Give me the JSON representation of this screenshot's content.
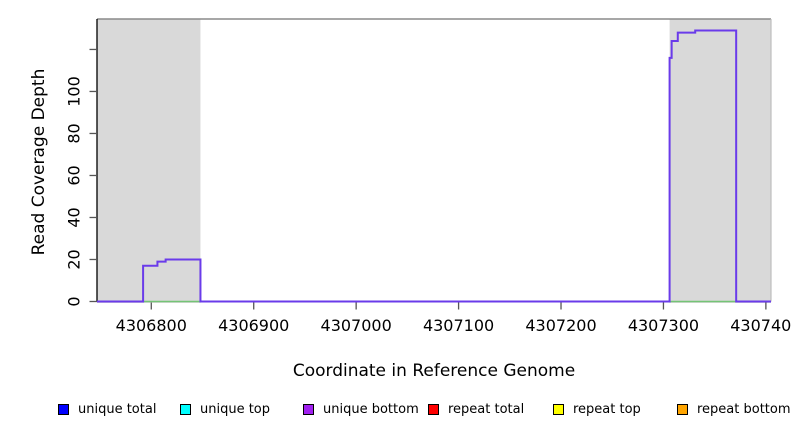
{
  "figure": {
    "y_axis_label": "Read Coverage Depth",
    "x_axis_label": "Coordinate in Reference Genome"
  },
  "chart_data": {
    "type": "line",
    "title": "",
    "xlabel": "Coordinate in Reference Genome",
    "ylabel": "Read Coverage Depth",
    "xlim": [
      4306747,
      4307405
    ],
    "ylim": [
      0,
      134.5
    ],
    "grid": false,
    "x_ticks": [
      4306800,
      4306900,
      4307000,
      4307100,
      4307200,
      4307300,
      4307400
    ],
    "x_tick_labels": [
      "4306800",
      "4306900",
      "4307000",
      "4307100",
      "4307200",
      "4307300",
      "4307400"
    ],
    "y_ticks_labeled": [
      0,
      20,
      40,
      60,
      80,
      100
    ],
    "y_tick_labels": [
      "0",
      "20",
      "40",
      "60",
      "80",
      "100"
    ],
    "y_ticks_unlabeled": [
      120
    ],
    "shaded_regions": [
      {
        "name": "left-shaded-region",
        "x0": 4306747,
        "x1": 4306848,
        "color": "#d9d9d9"
      },
      {
        "name": "right-shaded-region",
        "x0": 4307306,
        "x1": 4307405,
        "color": "#d9d9d9"
      }
    ],
    "series": [
      {
        "name": "zero-baseline-green-left",
        "color": "#74c476",
        "width": 1.6,
        "points": [
          [
            4306792,
            0
          ],
          [
            4306848,
            0
          ]
        ]
      },
      {
        "name": "zero-baseline-green-right",
        "color": "#74c476",
        "width": 1.6,
        "points": [
          [
            4307306,
            0
          ],
          [
            4307371,
            0
          ]
        ]
      },
      {
        "name": "unique-bottom-coverage",
        "color": "#6a3bea",
        "width": 2,
        "points": [
          [
            4306747,
            0
          ],
          [
            4306792,
            0
          ],
          [
            4306792,
            17
          ],
          [
            4306806,
            17
          ],
          [
            4306806,
            19
          ],
          [
            4306814,
            19
          ],
          [
            4306814,
            20
          ],
          [
            4306848,
            20
          ],
          [
            4306848,
            0
          ],
          [
            4307306,
            0
          ],
          [
            4307306,
            116
          ],
          [
            4307308,
            116
          ],
          [
            4307308,
            124
          ],
          [
            4307314,
            124
          ],
          [
            4307314,
            128
          ],
          [
            4307331,
            128
          ],
          [
            4307331,
            129
          ],
          [
            4307371,
            129
          ],
          [
            4307371,
            0
          ],
          [
            4307405,
            0
          ]
        ]
      }
    ],
    "frame_colors": {
      "top": "#8a8a8a",
      "right": "#bdbdbd",
      "left_axis": "#000000",
      "tick": "#555555"
    },
    "legend_position": "bottom"
  },
  "legend": {
    "items": [
      {
        "label": "unique total",
        "color": "#0000ff"
      },
      {
        "label": "unique top",
        "color": "#00ffff"
      },
      {
        "label": "unique bottom",
        "color": "#a020f0"
      },
      {
        "label": "repeat total",
        "color": "#ff0000"
      },
      {
        "label": "repeat top",
        "color": "#ffff00"
      },
      {
        "label": "repeat bottom",
        "color": "#ffa500"
      }
    ]
  }
}
